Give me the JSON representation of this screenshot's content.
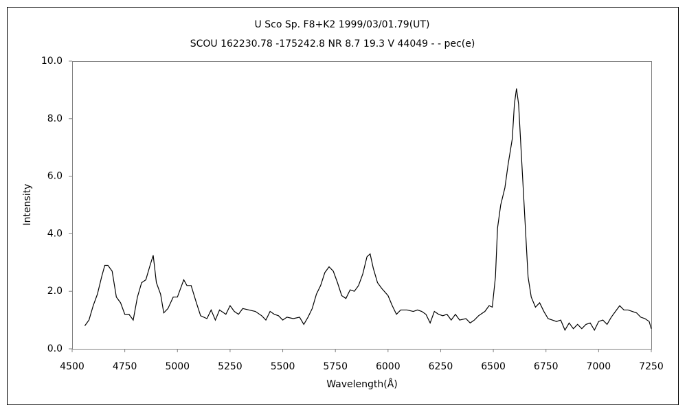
{
  "chart_data": {
    "type": "line",
    "title": "U Sco    Sp. F8+K2    1999/03/01.79(UT)",
    "subtitle": "SCOU 162230.78 -175242.8 NR 8.7 19.3 V 44049 - - pec(e)",
    "x_label": "Wavelength(Å)",
    "y_label": "Intensity",
    "color": "#000000",
    "x": [
      4560,
      4580,
      4600,
      4620,
      4640,
      4655,
      4670,
      4690,
      4710,
      4730,
      4750,
      4770,
      4790,
      4810,
      4830,
      4850,
      4870,
      4885,
      4900,
      4920,
      4935,
      4955,
      4980,
      5000,
      5030,
      5045,
      5065,
      5090,
      5110,
      5140,
      5160,
      5180,
      5200,
      5230,
      5250,
      5270,
      5290,
      5310,
      5340,
      5370,
      5400,
      5420,
      5440,
      5460,
      5480,
      5500,
      5520,
      5550,
      5580,
      5600,
      5620,
      5640,
      5660,
      5680,
      5700,
      5720,
      5740,
      5760,
      5780,
      5800,
      5820,
      5840,
      5860,
      5880,
      5900,
      5915,
      5930,
      5950,
      5970,
      6000,
      6020,
      6040,
      6060,
      6090,
      6120,
      6140,
      6160,
      6180,
      6200,
      6220,
      6240,
      6260,
      6280,
      6300,
      6320,
      6340,
      6370,
      6390,
      6410,
      6430,
      6460,
      6480,
      6495,
      6510,
      6520,
      6535,
      6555,
      6570,
      6590,
      6600,
      6610,
      6620,
      6635,
      6650,
      6665,
      6680,
      6700,
      6720,
      6740,
      6760,
      6780,
      6800,
      6820,
      6840,
      6860,
      6880,
      6900,
      6920,
      6940,
      6960,
      6980,
      7000,
      7020,
      7040,
      7060,
      7080,
      7100,
      7120,
      7140,
      7160,
      7180,
      7200,
      7220,
      7240,
      7250
    ],
    "values": [
      0.8,
      1.0,
      1.5,
      1.9,
      2.5,
      2.9,
      2.9,
      2.7,
      1.8,
      1.6,
      1.2,
      1.2,
      1.0,
      1.8,
      2.3,
      2.4,
      2.9,
      3.25,
      2.3,
      1.9,
      1.25,
      1.4,
      1.8,
      1.8,
      2.4,
      2.2,
      2.2,
      1.6,
      1.15,
      1.05,
      1.35,
      1.0,
      1.35,
      1.2,
      1.5,
      1.3,
      1.2,
      1.4,
      1.35,
      1.3,
      1.15,
      1.0,
      1.3,
      1.2,
      1.15,
      1.0,
      1.1,
      1.05,
      1.1,
      0.85,
      1.1,
      1.4,
      1.9,
      2.2,
      2.65,
      2.85,
      2.7,
      2.3,
      1.85,
      1.75,
      2.05,
      2.0,
      2.2,
      2.6,
      3.2,
      3.3,
      2.8,
      2.3,
      2.1,
      1.85,
      1.5,
      1.2,
      1.35,
      1.35,
      1.3,
      1.35,
      1.3,
      1.2,
      0.9,
      1.3,
      1.2,
      1.15,
      1.2,
      1.0,
      1.2,
      1.0,
      1.05,
      0.9,
      1.0,
      1.15,
      1.3,
      1.5,
      1.45,
      2.5,
      4.2,
      5.0,
      5.6,
      6.4,
      7.3,
      8.5,
      9.05,
      8.5,
      6.5,
      4.5,
      2.5,
      1.8,
      1.45,
      1.6,
      1.3,
      1.05,
      1.0,
      0.95,
      1.0,
      0.65,
      0.9,
      0.7,
      0.85,
      0.7,
      0.85,
      0.9,
      0.65,
      0.95,
      1.0,
      0.85,
      1.1,
      1.3,
      1.5,
      1.35,
      1.35,
      1.3,
      1.25,
      1.1,
      1.05,
      0.95,
      0.7
    ],
    "xlim": [
      4500,
      7250
    ],
    "xticks": [
      4500,
      4750,
      5000,
      5250,
      5500,
      5750,
      6000,
      6250,
      6500,
      6750,
      7000,
      7250
    ],
    "ylim": [
      0,
      10
    ],
    "yticks": [
      {
        "value": 0,
        "label": "0.0"
      },
      {
        "value": 2,
        "label": "2.0"
      },
      {
        "value": 4,
        "label": "4.0"
      },
      {
        "value": 6,
        "label": "6.0"
      },
      {
        "value": 8,
        "label": "8.0"
      },
      {
        "value": 10,
        "label": "10.0"
      }
    ]
  }
}
